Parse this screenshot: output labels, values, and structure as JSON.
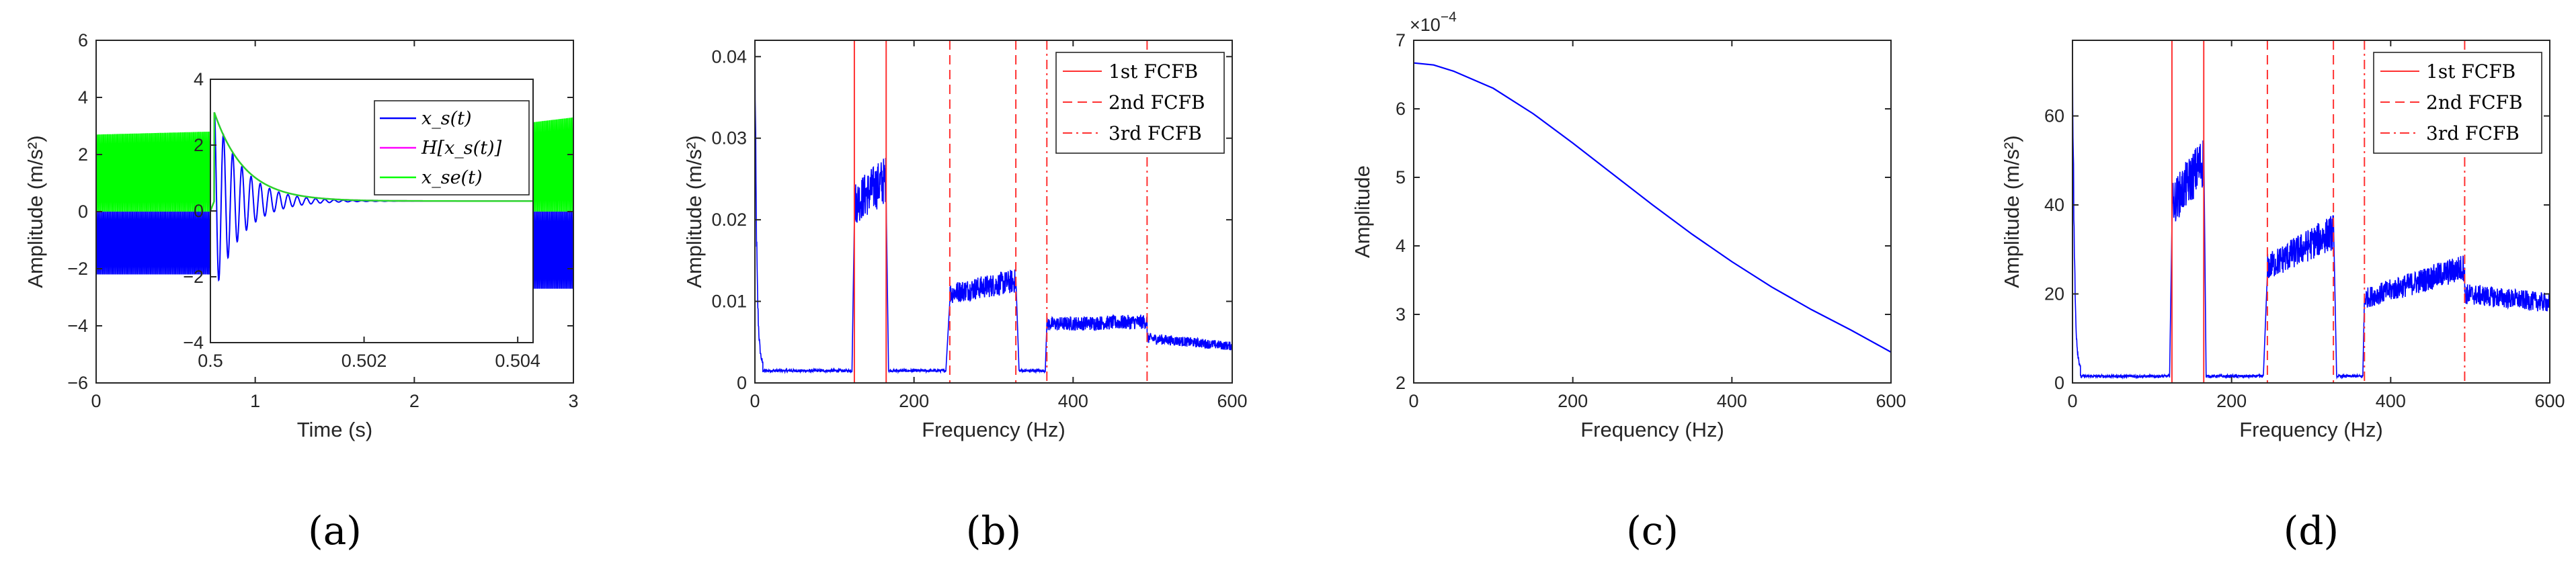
{
  "chart_data": [
    {
      "id": "a",
      "panel_label": "(a)",
      "type": "line",
      "xlabel": "Time (s)",
      "ylabel": "Amplitude (m/s²)",
      "xlim": [
        0,
        3
      ],
      "ylim": [
        -6,
        6
      ],
      "xticks": [
        "0",
        "1",
        "2",
        "3"
      ],
      "yticks": [
        "−6",
        "−4",
        "−2",
        "0",
        "2",
        "4",
        "6"
      ],
      "grid": false,
      "series": [
        {
          "name": "x_s(t)",
          "color": "#0000ff",
          "band": [
            [
              0.0,
              -2.2,
              0.0
            ],
            [
              0.7,
              -2.2,
              0.0
            ],
            [
              2.7,
              -2.7,
              0.0
            ],
            [
              3.0,
              -2.7,
              0.0
            ]
          ]
        },
        {
          "name": "x_se(t)",
          "color": "#00ff00",
          "band": [
            [
              0.0,
              0.0,
              2.7
            ],
            [
              0.7,
              0.0,
              2.8
            ],
            [
              2.7,
              0.0,
              3.1
            ],
            [
              3.0,
              0.0,
              3.3
            ]
          ]
        }
      ],
      "inset": {
        "xlim": [
          0.5,
          0.5042
        ],
        "ylim": [
          -4,
          4
        ],
        "xticks": [
          "0.5",
          "0.502",
          "0.504"
        ],
        "yticks": [
          "−4",
          "−2",
          "0",
          "2",
          "4"
        ],
        "legend": [
          "x_s(t)",
          "H[x_s(t)]",
          "x_se(t)"
        ],
        "legend_position": "top-right",
        "series": [
          {
            "name": "x_s(t)",
            "color": "#0000ff",
            "kind": "decaying-oscillation",
            "onset": 0.50005,
            "peak": 3.0,
            "decay": 0.0004,
            "period": 0.00012,
            "offset": 0.3
          },
          {
            "name": "H[x_s(t)]",
            "color": "#ff00ff",
            "kind": "envelope"
          },
          {
            "name": "x_se(t)",
            "color": "#00ff00",
            "kind": "envelope"
          }
        ]
      }
    },
    {
      "id": "b",
      "panel_label": "(b)",
      "type": "line",
      "xlabel": "Frequency (Hz)",
      "ylabel": "Amplitude (m/s²)",
      "xlim": [
        0,
        600
      ],
      "ylim": [
        0,
        0.042
      ],
      "xticks": [
        "0",
        "200",
        "400",
        "600"
      ],
      "yticks": [
        "0",
        "0.01",
        "0.02",
        "0.03",
        "0.04"
      ],
      "grid": false,
      "legend": [
        "1st FCFB",
        "2nd FCFB",
        "3rd FCFB"
      ],
      "legend_position": "top-right",
      "vlines": [
        {
          "x": 125,
          "style": "solid"
        },
        {
          "x": 165,
          "style": "solid"
        },
        {
          "x": 245,
          "style": "dashed"
        },
        {
          "x": 328,
          "style": "dashed"
        },
        {
          "x": 367,
          "style": "dashdot"
        },
        {
          "x": 493,
          "style": "dashdot"
        }
      ],
      "bands": [
        [
          0,
          10,
          0.04,
          0.002
        ],
        [
          10,
          122,
          0.0015,
          0.0015
        ],
        [
          125,
          165,
          0.022,
          0.025
        ],
        [
          168,
          240,
          0.0015,
          0.0015
        ],
        [
          245,
          328,
          0.011,
          0.0125
        ],
        [
          332,
          365,
          0.0015,
          0.0015
        ],
        [
          367,
          493,
          0.0072,
          0.0075
        ],
        [
          493,
          600,
          0.0055,
          0.0045
        ]
      ]
    },
    {
      "id": "c",
      "panel_label": "(c)",
      "type": "line",
      "xlabel": "Frequency (Hz)",
      "ylabel": "Amplitude",
      "xlim": [
        0,
        600
      ],
      "ylim": [
        2,
        7
      ],
      "xticks": [
        "0",
        "200",
        "400",
        "600"
      ],
      "yticks": [
        "2",
        "3",
        "4",
        "5",
        "6",
        "7"
      ],
      "scale_label": "×10",
      "scale_exp": "−4",
      "grid": false,
      "series": [
        {
          "name": "",
          "color": "#0000ff",
          "x": [
            0,
            25,
            50,
            100,
            150,
            200,
            250,
            300,
            350,
            400,
            450,
            500,
            550,
            600
          ],
          "y": [
            6.67,
            6.64,
            6.55,
            6.3,
            5.93,
            5.5,
            5.05,
            4.6,
            4.17,
            3.77,
            3.4,
            3.07,
            2.77,
            2.45
          ]
        }
      ]
    },
    {
      "id": "d",
      "panel_label": "(d)",
      "type": "line",
      "xlabel": "Frequency (Hz)",
      "ylabel": "Amplitude (m/s²)",
      "xlim": [
        0,
        600
      ],
      "ylim": [
        0,
        77
      ],
      "xticks": [
        "0",
        "200",
        "400",
        "600"
      ],
      "yticks": [
        "0",
        "20",
        "40",
        "60"
      ],
      "grid": false,
      "legend": [
        "1st FCFB",
        "2nd FCFB",
        "3rd FCFB"
      ],
      "legend_position": "top-right",
      "vlines": [
        {
          "x": 125,
          "style": "solid"
        },
        {
          "x": 165,
          "style": "solid"
        },
        {
          "x": 245,
          "style": "dashed"
        },
        {
          "x": 328,
          "style": "dashed"
        },
        {
          "x": 367,
          "style": "dashdot"
        },
        {
          "x": 493,
          "style": "dashdot"
        }
      ],
      "bands": [
        [
          0,
          10,
          77,
          3
        ],
        [
          10,
          122,
          1.5,
          1.5
        ],
        [
          125,
          165,
          40,
          50
        ],
        [
          168,
          240,
          1.5,
          1.5
        ],
        [
          245,
          328,
          26,
          34
        ],
        [
          332,
          365,
          1.5,
          1.5
        ],
        [
          367,
          493,
          19,
          26
        ],
        [
          493,
          600,
          20,
          18
        ]
      ]
    }
  ]
}
